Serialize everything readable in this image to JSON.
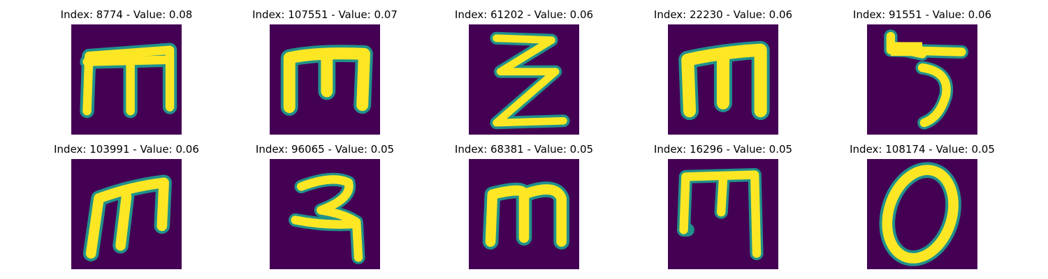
{
  "figure": {
    "colors": {
      "background_cmap_low": "#440154",
      "stroke_mid": "#21918c",
      "stroke_high": "#fde725"
    },
    "panels": [
      {
        "title": "Index: 8774 - Value: 0.08",
        "glyph": "m-flat-top"
      },
      {
        "title": "Index: 107551 - Value: 0.07",
        "glyph": "m-bold"
      },
      {
        "title": "Index: 61202 - Value: 0.06",
        "glyph": "zigzag-z"
      },
      {
        "title": "Index: 22230 - Value: 0.06",
        "glyph": "m-bold-right"
      },
      {
        "title": "Index: 91551 - Value: 0.06",
        "glyph": "hook-5"
      },
      {
        "title": "Index: 103991 - Value: 0.06",
        "glyph": "m-slanted"
      },
      {
        "title": "Index: 96065 - Value: 0.05",
        "glyph": "hook-2"
      },
      {
        "title": "Index: 68381 - Value: 0.05",
        "glyph": "m-rounded"
      },
      {
        "title": "Index: 16296 - Value: 0.05",
        "glyph": "m-narrow"
      },
      {
        "title": "Index: 108174 - Value: 0.05",
        "glyph": "zero"
      }
    ]
  }
}
